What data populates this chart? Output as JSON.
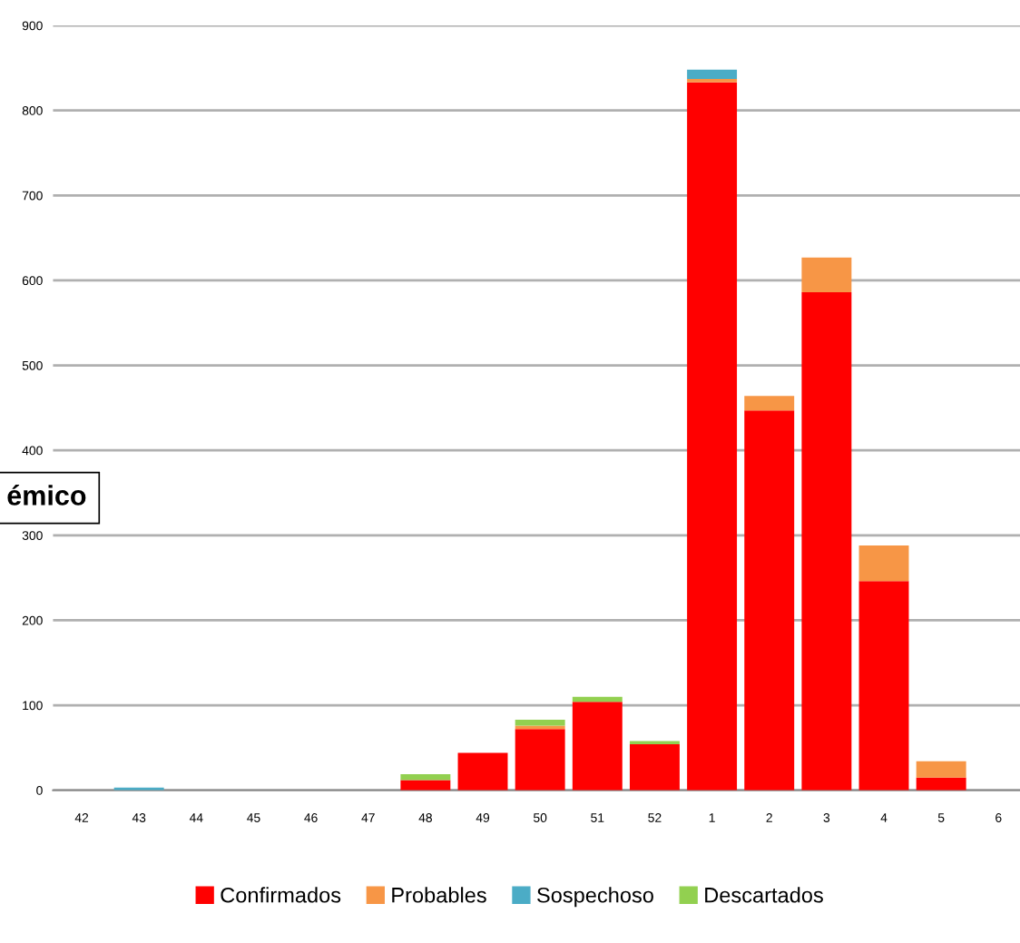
{
  "chart_data": {
    "type": "bar",
    "stacked": true,
    "categories": [
      "42",
      "43",
      "44",
      "45",
      "46",
      "47",
      "48",
      "49",
      "50",
      "51",
      "52",
      "1",
      "2",
      "3",
      "4",
      "5",
      "6"
    ],
    "series": [
      {
        "name": "Confirmados",
        "color": "#ff0000",
        "values": [
          0,
          0,
          0,
          0,
          0,
          0,
          12,
          44,
          72,
          104,
          54,
          833,
          447,
          586,
          246,
          15,
          0
        ]
      },
      {
        "name": "Probables",
        "color": "#f79646",
        "values": [
          0,
          0,
          0,
          0,
          0,
          0,
          0,
          0,
          4,
          0,
          0,
          4,
          17,
          41,
          42,
          19,
          0
        ]
      },
      {
        "name": "Sospechoso",
        "color": "#4bacc6",
        "values": [
          0,
          3,
          0,
          0,
          0,
          0,
          0,
          0,
          0,
          0,
          0,
          11,
          0,
          0,
          0,
          0,
          0
        ]
      },
      {
        "name": "Descartados",
        "color": "#92d050",
        "values": [
          0,
          0,
          0,
          0,
          0,
          0,
          7,
          0,
          7,
          6,
          4,
          0,
          0,
          0,
          0,
          0,
          0
        ]
      }
    ],
    "ylim": [
      0,
      900
    ],
    "yticks": [
      0,
      100,
      200,
      300,
      400,
      500,
      600,
      700,
      800,
      900
    ],
    "grid": "y",
    "legend": "bottom",
    "annotations": [
      "émico"
    ]
  }
}
